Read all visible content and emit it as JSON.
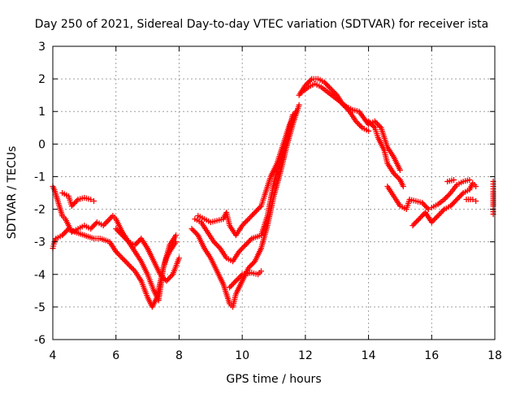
{
  "chart_data": {
    "type": "scatter",
    "title": "Day 250 of 2021, Sidereal Day-to-day VTEC variation (SDTVAR) for receiver ista",
    "xlabel": "GPS time / hours",
    "ylabel": "SDTVAR / TECUs",
    "xlim": [
      4,
      18
    ],
    "ylim": [
      -6,
      3
    ],
    "xticks": [
      4,
      6,
      8,
      10,
      12,
      14,
      16,
      18
    ],
    "xtick_labels": [
      "4",
      "6",
      "8",
      "10",
      "12",
      "14",
      "16",
      "18"
    ],
    "yticks": [
      -6,
      -5,
      -4,
      -3,
      -2,
      -1,
      0,
      1,
      2,
      3
    ],
    "ytick_labels": [
      "-6",
      "-5",
      "-4",
      "-3",
      "-2",
      "-1",
      "0",
      "1",
      "2",
      "3"
    ],
    "grid": true,
    "marker": "+",
    "series_color": "#ff0000",
    "series": [
      {
        "name": "track-a",
        "points": [
          [
            4.0,
            -1.3
          ],
          [
            4.05,
            -1.4
          ],
          [
            4.3,
            -2.2
          ],
          [
            4.4,
            -2.3
          ],
          [
            4.6,
            -2.7
          ],
          [
            4.8,
            -2.6
          ],
          [
            5.0,
            -2.5
          ],
          [
            5.2,
            -2.6
          ],
          [
            5.4,
            -2.4
          ],
          [
            5.6,
            -2.5
          ],
          [
            5.9,
            -2.2
          ],
          [
            6.0,
            -2.3
          ],
          [
            6.2,
            -2.7
          ],
          [
            6.4,
            -3.0
          ],
          [
            6.6,
            -3.3
          ],
          [
            6.8,
            -3.6
          ],
          [
            7.0,
            -4.0
          ],
          [
            7.2,
            -4.5
          ],
          [
            7.35,
            -4.8
          ],
          [
            7.5,
            -3.8
          ],
          [
            7.7,
            -3.1
          ],
          [
            7.9,
            -2.8
          ]
        ]
      },
      {
        "name": "track-b",
        "points": [
          [
            4.0,
            -3.2
          ],
          [
            4.05,
            -3.0
          ],
          [
            4.1,
            -2.9
          ],
          [
            4.3,
            -2.8
          ],
          [
            4.5,
            -2.6
          ],
          [
            4.7,
            -2.7
          ],
          [
            5.0,
            -2.8
          ],
          [
            5.3,
            -2.9
          ],
          [
            5.5,
            -2.9
          ],
          [
            5.8,
            -3.0
          ],
          [
            6.0,
            -3.3
          ],
          [
            6.2,
            -3.5
          ],
          [
            6.4,
            -3.7
          ],
          [
            6.6,
            -3.9
          ],
          [
            6.8,
            -4.2
          ],
          [
            7.0,
            -4.7
          ],
          [
            7.15,
            -5.0
          ],
          [
            7.3,
            -4.7
          ],
          [
            7.5,
            -3.8
          ],
          [
            7.6,
            -3.5
          ],
          [
            7.7,
            -3.3
          ],
          [
            7.9,
            -3.0
          ]
        ]
      },
      {
        "name": "track-c",
        "points": [
          [
            4.3,
            -1.5
          ],
          [
            4.5,
            -1.6
          ],
          [
            4.6,
            -1.9
          ],
          [
            4.8,
            -1.7
          ],
          [
            5.0,
            -1.65
          ],
          [
            5.2,
            -1.7
          ],
          [
            5.3,
            -1.75
          ],
          [
            6.0,
            -2.6
          ],
          [
            6.2,
            -2.8
          ],
          [
            6.4,
            -3.0
          ],
          [
            6.6,
            -3.1
          ],
          [
            6.8,
            -2.9
          ],
          [
            7.0,
            -3.2
          ],
          [
            7.2,
            -3.6
          ],
          [
            7.4,
            -4.0
          ],
          [
            7.6,
            -4.2
          ],
          [
            7.8,
            -4.0
          ],
          [
            8.0,
            -3.5
          ]
        ]
      },
      {
        "name": "track-d",
        "points": [
          [
            8.4,
            -2.6
          ],
          [
            8.6,
            -2.8
          ],
          [
            8.8,
            -3.2
          ],
          [
            9.0,
            -3.5
          ],
          [
            9.2,
            -3.9
          ],
          [
            9.4,
            -4.3
          ],
          [
            9.6,
            -4.9
          ],
          [
            9.7,
            -5.0
          ],
          [
            9.8,
            -4.6
          ],
          [
            10.0,
            -4.2
          ],
          [
            10.2,
            -3.8
          ],
          [
            10.4,
            -3.6
          ],
          [
            10.6,
            -3.2
          ],
          [
            10.8,
            -2.5
          ],
          [
            11.0,
            -1.6
          ],
          [
            11.2,
            -0.9
          ],
          [
            11.4,
            -0.1
          ],
          [
            11.6,
            0.6
          ],
          [
            11.8,
            1.2
          ]
        ]
      },
      {
        "name": "track-e",
        "points": [
          [
            8.5,
            -2.3
          ],
          [
            8.7,
            -2.4
          ],
          [
            8.9,
            -2.7
          ],
          [
            9.1,
            -3.0
          ],
          [
            9.3,
            -3.2
          ],
          [
            9.5,
            -3.5
          ],
          [
            9.7,
            -3.6
          ],
          [
            9.9,
            -3.3
          ],
          [
            10.1,
            -3.1
          ],
          [
            10.3,
            -2.9
          ],
          [
            10.6,
            -2.8
          ],
          [
            10.8,
            -2.2
          ],
          [
            11.0,
            -1.2
          ],
          [
            11.2,
            -0.5
          ],
          [
            11.4,
            0.1
          ],
          [
            11.6,
            0.9
          ]
        ]
      },
      {
        "name": "track-f",
        "points": [
          [
            8.6,
            -2.2
          ],
          [
            8.8,
            -2.3
          ],
          [
            9.0,
            -2.4
          ],
          [
            9.2,
            -2.35
          ],
          [
            9.4,
            -2.3
          ],
          [
            9.5,
            -2.1
          ],
          [
            9.6,
            -2.5
          ],
          [
            9.8,
            -2.8
          ],
          [
            10.0,
            -2.5
          ],
          [
            10.2,
            -2.3
          ],
          [
            10.4,
            -2.1
          ],
          [
            10.6,
            -1.9
          ],
          [
            10.7,
            -1.6
          ],
          [
            10.9,
            -1.0
          ],
          [
            11.1,
            -0.6
          ],
          [
            11.3,
            0.0
          ],
          [
            11.5,
            0.6
          ],
          [
            11.7,
            1.0
          ]
        ]
      },
      {
        "name": "track-g",
        "points": [
          [
            9.6,
            -4.4
          ],
          [
            9.8,
            -4.2
          ],
          [
            10.0,
            -4.0
          ],
          [
            10.3,
            -3.95
          ],
          [
            10.5,
            -4.0
          ],
          [
            10.6,
            -3.9
          ]
        ]
      },
      {
        "name": "track-h",
        "points": [
          [
            11.8,
            1.5
          ],
          [
            12.0,
            1.8
          ],
          [
            12.2,
            2.0
          ],
          [
            12.4,
            2.0
          ],
          [
            12.6,
            1.9
          ],
          [
            12.8,
            1.7
          ],
          [
            13.0,
            1.5
          ],
          [
            13.2,
            1.2
          ],
          [
            13.4,
            1.0
          ],
          [
            13.6,
            0.7
          ],
          [
            13.8,
            0.5
          ],
          [
            14.0,
            0.4
          ]
        ]
      },
      {
        "name": "track-i",
        "points": [
          [
            11.9,
            1.6
          ],
          [
            12.1,
            1.75
          ],
          [
            12.3,
            1.85
          ],
          [
            12.5,
            1.75
          ],
          [
            12.7,
            1.6
          ],
          [
            12.9,
            1.45
          ],
          [
            13.1,
            1.3
          ],
          [
            13.3,
            1.15
          ],
          [
            13.5,
            1.05
          ],
          [
            13.7,
            1.0
          ],
          [
            14.0,
            0.6
          ],
          [
            14.2,
            0.7
          ],
          [
            14.4,
            0.5
          ],
          [
            14.6,
            -0.1
          ],
          [
            14.8,
            -0.4
          ],
          [
            15.0,
            -0.8
          ]
        ]
      },
      {
        "name": "track-j",
        "points": [
          [
            14.0,
            0.7
          ],
          [
            14.2,
            0.5
          ],
          [
            14.3,
            0.2
          ],
          [
            14.5,
            -0.2
          ],
          [
            14.6,
            -0.6
          ],
          [
            14.8,
            -0.9
          ],
          [
            15.0,
            -1.1
          ],
          [
            15.1,
            -1.3
          ],
          [
            14.6,
            -1.3
          ],
          [
            14.8,
            -1.6
          ],
          [
            15.0,
            -1.9
          ],
          [
            15.2,
            -2.0
          ],
          [
            15.3,
            -1.7
          ],
          [
            15.5,
            -1.75
          ],
          [
            15.7,
            -1.8
          ],
          [
            15.9,
            -2.0
          ]
        ]
      },
      {
        "name": "track-k",
        "points": [
          [
            15.4,
            -2.5
          ],
          [
            15.6,
            -2.3
          ],
          [
            15.8,
            -2.1
          ],
          [
            16.0,
            -2.4
          ],
          [
            16.2,
            -2.2
          ],
          [
            16.4,
            -2.0
          ],
          [
            16.6,
            -1.9
          ],
          [
            16.8,
            -1.7
          ],
          [
            17.0,
            -1.5
          ],
          [
            17.2,
            -1.4
          ],
          [
            17.3,
            -1.2
          ],
          [
            17.4,
            -1.3
          ]
        ]
      },
      {
        "name": "track-l",
        "points": [
          [
            16.0,
            -1.95
          ],
          [
            16.2,
            -1.85
          ],
          [
            16.4,
            -1.7
          ],
          [
            16.6,
            -1.5
          ],
          [
            16.8,
            -1.25
          ],
          [
            17.0,
            -1.15
          ],
          [
            17.2,
            -1.1
          ],
          [
            16.5,
            -1.15
          ],
          [
            16.7,
            -1.1
          ],
          [
            17.1,
            -1.7
          ],
          [
            17.3,
            -1.7
          ],
          [
            17.4,
            -1.75
          ]
        ]
      },
      {
        "name": "track-m",
        "points": [
          [
            17.95,
            -1.15
          ],
          [
            17.95,
            -1.3
          ],
          [
            17.95,
            -1.45
          ],
          [
            17.95,
            -1.9
          ],
          [
            17.95,
            -2.0
          ],
          [
            17.95,
            -2.15
          ]
        ]
      }
    ]
  }
}
